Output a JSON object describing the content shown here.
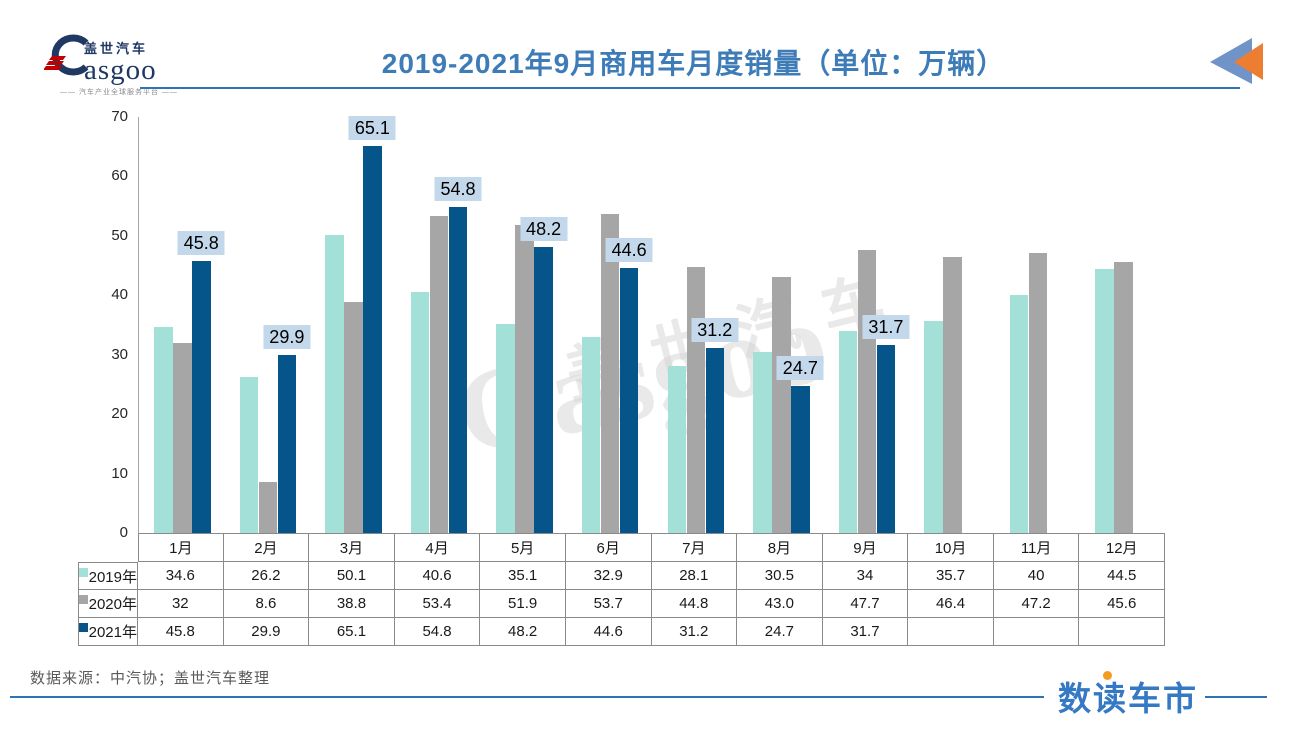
{
  "header": {
    "logo": {
      "brand_cn": "盖世汽车",
      "brand_en": "asgoo",
      "tagline": "—— 汽车产业全球服务平台 ——"
    },
    "title": "2019-2021年9月商用车月度销量（单位：万辆）"
  },
  "chart_data": {
    "type": "bar",
    "title": "2019-2021年9月商用车月度销量（单位：万辆）",
    "unit": "万辆",
    "categories": [
      "1月",
      "2月",
      "3月",
      "4月",
      "5月",
      "6月",
      "7月",
      "8月",
      "9月",
      "10月",
      "11月",
      "12月"
    ],
    "series": [
      {
        "name": "2019年",
        "color": "#a2e0d8",
        "values": [
          34.6,
          26.2,
          50.1,
          40.6,
          35.1,
          32.9,
          28.1,
          30.5,
          34,
          35.7,
          40,
          44.5
        ],
        "display": [
          "34.6",
          "26.2",
          "50.1",
          "40.6",
          "35.1",
          "32.9",
          "28.1",
          "30.5",
          "34",
          "35.7",
          "40",
          "44.5"
        ],
        "show_labels": false
      },
      {
        "name": "2020年",
        "color": "#a6a6a6",
        "values": [
          32,
          8.6,
          38.8,
          53.4,
          51.9,
          53.7,
          44.8,
          43.0,
          47.7,
          46.4,
          47.2,
          45.6
        ],
        "display": [
          "32",
          "8.6",
          "38.8",
          "53.4",
          "51.9",
          "53.7",
          "44.8",
          "43.0",
          "47.7",
          "46.4",
          "47.2",
          "45.6"
        ],
        "show_labels": false
      },
      {
        "name": "2021年",
        "color": "#05548a",
        "values": [
          45.8,
          29.9,
          65.1,
          54.8,
          48.2,
          44.6,
          31.2,
          24.7,
          31.7,
          null,
          null,
          null
        ],
        "display": [
          "45.8",
          "29.9",
          "65.1",
          "54.8",
          "48.2",
          "44.6",
          "31.2",
          "24.7",
          "31.7",
          "",
          "",
          ""
        ],
        "show_labels": true
      }
    ],
    "ylim": [
      0,
      70
    ],
    "yticks": [
      0,
      10,
      20,
      30,
      40,
      50,
      60,
      70
    ],
    "grid": false,
    "legend_position": "table-row-labels",
    "label_bg_color": "#c3d8eb"
  },
  "watermark": {
    "text_cn": "盖世汽车",
    "text_en": "Gasgoo"
  },
  "footer": {
    "source": "数据来源：中汽协；盖世汽车整理",
    "brand": "数读车市"
  }
}
